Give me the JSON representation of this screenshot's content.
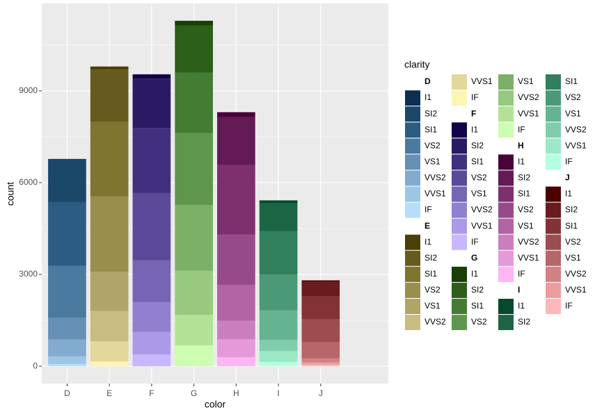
{
  "chart_data": {
    "type": "stacked-bar",
    "x_label": "color",
    "y_label": "count",
    "legend_title": "clarity",
    "ylim": [
      -565,
      11857
    ],
    "yticks": [
      0,
      3000,
      6000,
      9000
    ],
    "grid": true,
    "groups": [
      {
        "name": "D",
        "segments": [
          {
            "name": "I1",
            "color": "#0d2f4f",
            "value": 42
          },
          {
            "name": "SI2",
            "color": "#1b4769",
            "value": 1370
          },
          {
            "name": "SI1",
            "color": "#2c5c84",
            "value": 2083
          },
          {
            "name": "VS2",
            "color": "#4a7aa0",
            "value": 1697
          },
          {
            "name": "VS1",
            "color": "#6690b6",
            "value": 705
          },
          {
            "name": "VVS2",
            "color": "#83abd0",
            "value": 553
          },
          {
            "name": "VVS1",
            "color": "#9dc6e6",
            "value": 252
          },
          {
            "name": "IF",
            "color": "#b5dff9",
            "value": 73
          }
        ]
      },
      {
        "name": "E",
        "segments": [
          {
            "name": "I1",
            "color": "#4a4005",
            "value": 102
          },
          {
            "name": "SI2",
            "color": "#665b1c",
            "value": 1713
          },
          {
            "name": "SI1",
            "color": "#7f7430",
            "value": 2426
          },
          {
            "name": "VS2",
            "color": "#9a8e4c",
            "value": 2470
          },
          {
            "name": "VS1",
            "color": "#b0a466",
            "value": 1281
          },
          {
            "name": "VVS2",
            "color": "#c9bc7f",
            "value": 991
          },
          {
            "name": "VVS1",
            "color": "#e3d899",
            "value": 656
          },
          {
            "name": "IF",
            "color": "#fdf5b5",
            "value": 158
          }
        ]
      },
      {
        "name": "F",
        "segments": [
          {
            "name": "I1",
            "color": "#13044a",
            "value": 143
          },
          {
            "name": "SI2",
            "color": "#2a1a65",
            "value": 1609
          },
          {
            "name": "SI1",
            "color": "#41307f",
            "value": 2131
          },
          {
            "name": "VS2",
            "color": "#5b4a9a",
            "value": 2201
          },
          {
            "name": "VS1",
            "color": "#7664b4",
            "value": 1364
          },
          {
            "name": "VVS2",
            "color": "#917fcf",
            "value": 975
          },
          {
            "name": "VVS1",
            "color": "#ac9ae8",
            "value": 734
          },
          {
            "name": "IF",
            "color": "#c8b6ff",
            "value": 385
          }
        ]
      },
      {
        "name": "G",
        "segments": [
          {
            "name": "I1",
            "color": "#173f06",
            "value": 150
          },
          {
            "name": "SI2",
            "color": "#2b5f1a",
            "value": 1548
          },
          {
            "name": "SI1",
            "color": "#437c32",
            "value": 1976
          },
          {
            "name": "VS2",
            "color": "#5e974c",
            "value": 2347
          },
          {
            "name": "VS1",
            "color": "#7cb066",
            "value": 2148
          },
          {
            "name": "VVS2",
            "color": "#98c97f",
            "value": 1443
          },
          {
            "name": "VVS1",
            "color": "#b2e295",
            "value": 999
          },
          {
            "name": "IF",
            "color": "#cdfdb0",
            "value": 681
          }
        ]
      },
      {
        "name": "H",
        "segments": [
          {
            "name": "I1",
            "color": "#4a0338",
            "value": 162
          },
          {
            "name": "SI2",
            "color": "#631a55",
            "value": 1563
          },
          {
            "name": "SI1",
            "color": "#7d2f6e",
            "value": 2275
          },
          {
            "name": "VS2",
            "color": "#974a89",
            "value": 1643
          },
          {
            "name": "VS1",
            "color": "#b163a3",
            "value": 1169
          },
          {
            "name": "VVS2",
            "color": "#cb7ebe",
            "value": 608
          },
          {
            "name": "VVS1",
            "color": "#e599d8",
            "value": 585
          },
          {
            "name": "IF",
            "color": "#ffb4f4",
            "value": 299
          }
        ]
      },
      {
        "name": "I",
        "segments": [
          {
            "name": "I1",
            "color": "#054a2d",
            "value": 92
          },
          {
            "name": "SI2",
            "color": "#1b6545",
            "value": 912
          },
          {
            "name": "SI1",
            "color": "#307f5d",
            "value": 1424
          },
          {
            "name": "VS2",
            "color": "#4a9a77",
            "value": 1169
          },
          {
            "name": "VS1",
            "color": "#64b491",
            "value": 962
          },
          {
            "name": "VVS2",
            "color": "#7fceab",
            "value": 365
          },
          {
            "name": "VVS1",
            "color": "#9ae8c6",
            "value": 355
          },
          {
            "name": "IF",
            "color": "#b3ffe0",
            "value": 143
          }
        ]
      },
      {
        "name": "J",
        "segments": [
          {
            "name": "I1",
            "color": "#4e0000",
            "value": 50
          },
          {
            "name": "SI2",
            "color": "#691b1d",
            "value": 479
          },
          {
            "name": "SI1",
            "color": "#833336",
            "value": 750
          },
          {
            "name": "VS2",
            "color": "#9d4c4f",
            "value": 731
          },
          {
            "name": "VS1",
            "color": "#b76669",
            "value": 542
          },
          {
            "name": "VVS2",
            "color": "#d18184",
            "value": 131
          },
          {
            "name": "VVS1",
            "color": "#ec9c9f",
            "value": 74
          },
          {
            "name": "IF",
            "color": "#ffb7b9",
            "value": 51
          }
        ]
      }
    ]
  }
}
